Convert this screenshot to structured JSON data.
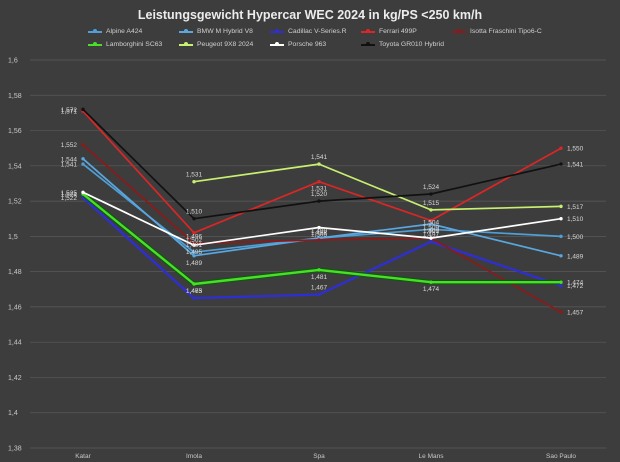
{
  "chart_data": {
    "type": "line",
    "title": "Leistungsgewicht  Hypercar WEC 2024 in kg/PS <250 km/h",
    "xlabel": "",
    "ylabel": "",
    "categories": [
      "Katar",
      "Imola",
      "Spa",
      "Le Mans",
      "Sao Paulo"
    ],
    "ylim": [
      1.38,
      1.6
    ],
    "yticks": [
      1.38,
      1.4,
      1.42,
      1.44,
      1.46,
      1.48,
      1.5,
      1.52,
      1.54,
      1.56,
      1.58,
      1.6
    ],
    "ytick_labels": [
      "1,38",
      "1,4",
      "1,42",
      "1,44",
      "1,46",
      "1,48",
      "1,5",
      "1,52",
      "1,54",
      "1,56",
      "1,58",
      "1,6"
    ],
    "grid": true,
    "legend_position": "top",
    "series": [
      {
        "name": "Alpine A424",
        "color": "#4f9fd6",
        "values": [
          1.541,
          1.491,
          1.499,
          1.504,
          1.5
        ],
        "labels": [
          "1,541",
          "1,491",
          "1,499",
          "1,504",
          "1,500"
        ]
      },
      {
        "name": "BMW M Hybrid V8",
        "color": "#5aa7e0",
        "values": [
          1.544,
          1.489,
          1.499,
          1.507,
          1.489
        ],
        "labels": [
          "1,544",
          "1,489",
          "",
          "1,507",
          "1,489"
        ]
      },
      {
        "name": "Cadillac V-Series.R",
        "color": "#2f2fcf",
        "values": [
          1.522,
          1.465,
          1.467,
          1.497,
          1.472
        ],
        "labels": [
          "1,522",
          "1,465",
          "1,467",
          "1,497",
          "1,472"
        ]
      },
      {
        "name": "Ferrari 499P",
        "color": "#dc2626",
        "values": [
          1.571,
          1.502,
          1.531,
          1.509,
          1.55
        ],
        "labels": [
          "1,571",
          "1,502",
          "1,531",
          "1,509",
          "1,550"
        ]
      },
      {
        "name": "Isotta Fraschini Tipo6-C",
        "color": "#8b1a1a",
        "values": [
          1.552,
          1.496,
          1.498,
          1.499,
          1.457
        ],
        "labels": [
          "1,552",
          "1,496",
          "1,498",
          "1,499",
          "1,457"
        ]
      },
      {
        "name": "Lamborghini SC63",
        "color": "#4bdd2a",
        "values": [
          1.524,
          1.473,
          1.481,
          1.474,
          1.474
        ],
        "labels": [
          "1,524",
          "1,473",
          "1,481",
          "1,474",
          "1,474"
        ]
      },
      {
        "name": "Peugeot 9X8 2024",
        "color": "#c8f070",
        "values": [
          null,
          1.531,
          1.541,
          1.515,
          1.517
        ],
        "labels": [
          "",
          "1,531",
          "1,541",
          "1,515",
          "1,517"
        ]
      },
      {
        "name": "Porsche 963",
        "color": "#ffffff",
        "values": [
          1.525,
          1.495,
          1.505,
          1.499,
          1.51
        ],
        "labels": [
          "1,525",
          "1,495",
          "1,505",
          "",
          "1,510"
        ]
      },
      {
        "name": "Toyota GR010 Hybrid",
        "color": "#111111",
        "values": [
          1.572,
          1.51,
          1.52,
          1.524,
          1.541
        ],
        "labels": [
          "1,572",
          "1,510",
          "1,520",
          "1,524",
          "1,541"
        ]
      }
    ]
  }
}
